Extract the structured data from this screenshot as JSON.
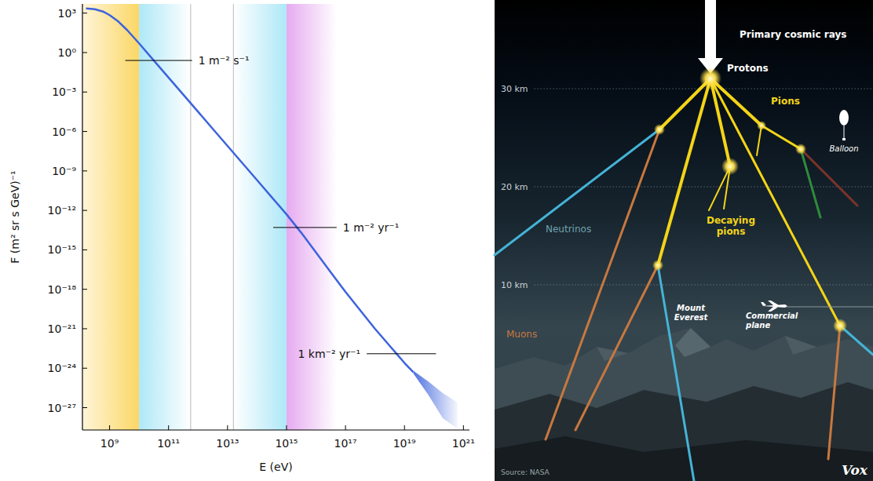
{
  "chart_data": {
    "type": "line",
    "x": [
      158000000.0,
      316000000.0,
      631000000.0,
      1000000000.0,
      2000000000.0,
      3980000000.0,
      10000000000.0,
      31600000000.0,
      100000000000.0,
      316000000000.0,
      1000000000000.0,
      3160000000000.0,
      10000000000000.0,
      31600000000000.0,
      100000000000000.0,
      316000000000000.0,
      1000000000000000.0,
      3160000000000000.0,
      1e+16,
      3.16e+16,
      1e+17,
      3.16e+17,
      1e+18,
      3.16e+18,
      1e+19,
      2e+19
    ],
    "values": [
      2239,
      1995,
      1259,
      708,
      224,
      50.1,
      5.01,
      0.251,
      0.0126,
      0.000631,
      3.16e-05,
      1.58e-06,
      7.94e-08,
      3.98e-09,
      2e-10,
      1e-11,
      5.01e-13,
      2e-14,
      6.31e-16,
      2e-17,
      6.31e-19,
      2.51e-20,
      1e-21,
      5.01e-23,
      2.51e-24,
      5.01e-25
    ],
    "color": "#3d63dd",
    "log": true,
    "xlim": [
      120000000.0,
      1.6e+21
    ],
    "ylim": [
      2e-29,
      5000.0
    ],
    "xticks": [
      {
        "value": 1000000000.0,
        "label": "10⁹"
      },
      {
        "value": 100000000000.0,
        "label": "10¹¹"
      },
      {
        "value": 10000000000000.0,
        "label": "10¹³"
      },
      {
        "value": 1000000000000000.0,
        "label": "10¹⁵"
      },
      {
        "value": 1e+17,
        "label": "10¹⁷"
      },
      {
        "value": 1e+19,
        "label": "10¹⁹"
      },
      {
        "value": 1e+21,
        "label": "10²¹"
      }
    ],
    "yticks": [
      {
        "value": 1000.0,
        "label": "10³"
      },
      {
        "value": 1,
        "label": "10⁰"
      },
      {
        "value": 0.001,
        "label": "10⁻³"
      },
      {
        "value": 1e-06,
        "label": "10⁻⁶"
      },
      {
        "value": 1e-09,
        "label": "10⁻⁹"
      },
      {
        "value": 1e-12,
        "label": "10⁻¹²"
      },
      {
        "value": 1e-15,
        "label": "10⁻¹⁵"
      },
      {
        "value": 1e-18,
        "label": "10⁻¹⁸"
      },
      {
        "value": 1e-21,
        "label": "10⁻²¹"
      },
      {
        "value": 1e-24,
        "label": "10⁻²⁴"
      },
      {
        "value": 1e-27,
        "label": "10⁻²⁷"
      }
    ],
    "x_label": "E (eV)",
    "y_label": "F (m² sr s GeV)⁻¹",
    "band": {
      "x": [
        2e+19,
        6.31e+19,
        2e+20,
        6.31e+20
      ],
      "upper": [
        6.31e-25,
        1e-25,
        1.26e-26,
        2.51e-27
      ],
      "lower": [
        3.98e-25,
        1e-26,
        1.58e-28,
        2.51e-29
      ]
    },
    "regions": [
      {
        "from": 120000000.0,
        "to": 10000000000.0,
        "colors": [
          "#fff5d8",
          "#fbd766"
        ]
      },
      {
        "from": 10000000000.0,
        "to": 562000000000.0,
        "colors": [
          "#aee8f7",
          "#ffffff"
        ]
      },
      {
        "from": 15800000000000.0,
        "to": 1000000000000000.0,
        "colors": [
          "#ffffff",
          "#aee8f7"
        ]
      },
      {
        "from": 1000000000000000.0,
        "to": 5.01e+16,
        "colors": [
          "#e6aaf0",
          "#ffffff"
        ]
      }
    ],
    "dividers": [
      562000000000.0,
      15800000000000.0
    ],
    "annotations": [
      {
        "text": "1 m⁻² s⁻¹",
        "y": 0.251,
        "x": [
          3390000000.0,
          631000000000.0
        ]
      },
      {
        "text": "1 m⁻² yr⁻¹",
        "y": 5.01e-14,
        "x": [
          355000000000000.0,
          5.01e+16
        ]
      },
      {
        "text": "1 km⁻² yr⁻¹",
        "y": 1.26e-23,
        "x": [
          5.25e+17,
          1.17e+20
        ]
      }
    ]
  },
  "diagram": {
    "title": "Primary cosmic rays",
    "labels": {
      "protons": "Protons",
      "pions": "Pions",
      "balloon": "Balloon",
      "neutrinos": "Neutrinos",
      "decaying_pions": "Decaying pions",
      "muons": "Muons",
      "mount_everest": "Mount Everest",
      "commercial_plane": "Commercial plane"
    },
    "altitude_lim": [
      -10,
      39.04
    ],
    "altitudes": [
      {
        "value": 30,
        "label": "30 km"
      },
      {
        "value": 20,
        "label": "20 km"
      },
      {
        "value": 10,
        "label": "10 km"
      }
    ],
    "source": "Source: NASA",
    "brand": "Vox"
  }
}
